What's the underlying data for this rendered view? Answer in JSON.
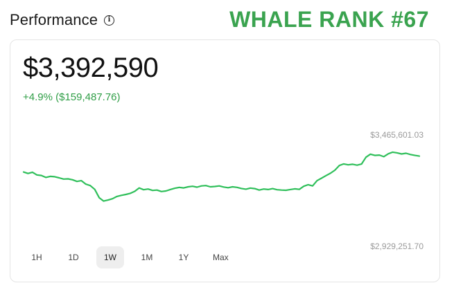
{
  "header": {
    "title": "Performance",
    "info_glyph": "i",
    "info_icon": "info-icon"
  },
  "badge": {
    "text": "WHALE RANK #67",
    "color": "#3aa34f"
  },
  "portfolio": {
    "value": "$3,392,590",
    "change": "+4.9% ($159,487.76)",
    "change_color": "#2f9e46"
  },
  "ranges": [
    {
      "label": "1H",
      "active": false
    },
    {
      "label": "1D",
      "active": false
    },
    {
      "label": "1W",
      "active": true
    },
    {
      "label": "1M",
      "active": false
    },
    {
      "label": "1Y",
      "active": false
    },
    {
      "label": "Max",
      "active": false
    }
  ],
  "chart_data": {
    "type": "line",
    "line_color": "#2fbf5a",
    "y_max_label": "$3,465,601.03",
    "y_min_label": "$2,929,251.70",
    "ylim": [
      2929251.7,
      3465601.03
    ],
    "values": [
      3310000,
      3302000,
      3309000,
      3294000,
      3291000,
      3280000,
      3286000,
      3284000,
      3278000,
      3271000,
      3272000,
      3267000,
      3258000,
      3262000,
      3243000,
      3235000,
      3214000,
      3168000,
      3149000,
      3155000,
      3162000,
      3175000,
      3181000,
      3186000,
      3192000,
      3203000,
      3222000,
      3212000,
      3216000,
      3208000,
      3210000,
      3202000,
      3205000,
      3213000,
      3220000,
      3225000,
      3222000,
      3228000,
      3231000,
      3226000,
      3233000,
      3235000,
      3228000,
      3230000,
      3233000,
      3227000,
      3223000,
      3228000,
      3225000,
      3219000,
      3215000,
      3221000,
      3218000,
      3210000,
      3216000,
      3213000,
      3218000,
      3212000,
      3210000,
      3209000,
      3213000,
      3217000,
      3214000,
      3231000,
      3240000,
      3233000,
      3262000,
      3276000,
      3290000,
      3303000,
      3320000,
      3346000,
      3355000,
      3350000,
      3353000,
      3348000,
      3354000,
      3392000,
      3409000,
      3402000,
      3404000,
      3395000,
      3411000,
      3420000,
      3416000,
      3410000,
      3414000,
      3407000,
      3402000,
      3398000
    ]
  }
}
